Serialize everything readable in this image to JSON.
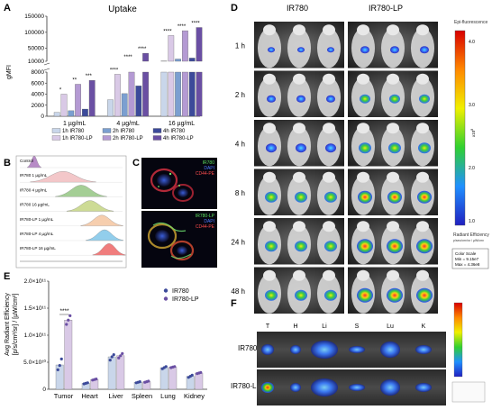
{
  "panels": {
    "a": {
      "letter": "A"
    },
    "b": {
      "letter": "B"
    },
    "c": {
      "letter": "C"
    },
    "d": {
      "letter": "D"
    },
    "e": {
      "letter": "E"
    },
    "f": {
      "letter": "F"
    }
  },
  "panel_a": {
    "title": "Uptake",
    "ylabel": "gMFI",
    "yticks_top": [
      "150000",
      "100000",
      "50000",
      "10000"
    ],
    "yticks_bottom": [
      "8000",
      "6000",
      "4000",
      "2000",
      "0"
    ],
    "groups": [
      "1 µg/mL",
      "4 µg/mL",
      "16 µg/mL"
    ],
    "group_sig": [
      [
        "*",
        "**",
        "***"
      ],
      [
        "****",
        "****",
        "****"
      ],
      [
        "****",
        "****",
        "****"
      ]
    ],
    "legend": [
      {
        "label": "1h IR780",
        "color": "#c9d6ea"
      },
      {
        "label": "2h IR780",
        "color": "#7b9fd0"
      },
      {
        "label": "4h IR780",
        "color": "#3c4a9a"
      },
      {
        "label": "1h IR780-LP",
        "color": "#d9c9e6"
      },
      {
        "label": "2h IR780-LP",
        "color": "#b49ad3"
      },
      {
        "label": "4h IR780-LP",
        "color": "#6a4fa3"
      }
    ]
  },
  "panel_b": {
    "rows": [
      {
        "label": "Control",
        "color": "#b07fc0"
      },
      {
        "label": "IR780 1 µg/mL",
        "color": "#f2c2c4"
      },
      {
        "label": "IR780 4 µg/mL",
        "color": "#9bc98a"
      },
      {
        "label": "IR780 16 µg/mL",
        "color": "#c8d88a"
      },
      {
        "label": "IR780-LP 1 µg/mL",
        "color": "#f6c9a6"
      },
      {
        "label": "IR780-LP 4 µg/mL",
        "color": "#87c9ea"
      },
      {
        "label": "IR780-LP 16 µg/mL",
        "color": "#ef6f6f"
      }
    ]
  },
  "panel_c": {
    "top": {
      "l1": "IR780",
      "l2": "DAPI",
      "l3": "CD44-PE"
    },
    "bottom": {
      "l1": "IR780-LP",
      "l2": "DAPI",
      "l3": "CD44-PE"
    },
    "colors": {
      "green": "#5ee05e",
      "blue": "#4f7bff",
      "red": "#ff4d4d"
    }
  },
  "panel_d": {
    "col_ir780": "IR780",
    "col_lp": "IR780-LP",
    "times": [
      "1 h",
      "2 h",
      "4 h",
      "8 h",
      "24 h",
      "48 h"
    ],
    "scale_title": "Epi-fluorescence",
    "scale_ticks": [
      "4.0",
      "3.0",
      "2.0",
      "1.0"
    ],
    "scale_exp": "x10",
    "scale_exp_power": "8",
    "radiant_label": "Radiant Efficiency",
    "radiant_units": "p/sec/cm²/sr / µW/cm²",
    "color_scale_title": "Color Scale",
    "color_scale_min": "Min = 9.15e7",
    "color_scale_max": "Max = 4.36e8"
  },
  "panel_e": {
    "ylabel_1": "Avg Radiant Efficiency",
    "ylabel_2": "[p/s/cm²/sr] / [µW/cm²]",
    "yticks": [
      "2.0×10¹¹",
      "1.5×10¹¹",
      "1.0×10¹¹",
      "5.0×10¹⁰",
      "0"
    ],
    "sig": "****",
    "legend": [
      {
        "label": "IR780",
        "color": "#3c4a9a"
      },
      {
        "label": "IR780-LP",
        "color": "#6a4fa3"
      }
    ]
  },
  "panel_f": {
    "organ_codes": [
      "T",
      "H",
      "Li",
      "S",
      "Lu",
      "K"
    ],
    "rows": [
      "IR780",
      "IR780-LP"
    ]
  },
  "chart_data": [
    {
      "type": "bar",
      "title": "Uptake",
      "xlabel": "",
      "ylabel": "gMFI",
      "categories": [
        "1 µg/mL",
        "4 µg/mL",
        "16 µg/mL"
      ],
      "series": [
        {
          "name": "1h IR780",
          "values": [
            700,
            3000,
            11000
          ]
        },
        {
          "name": "1h IR780-LP",
          "values": [
            4000,
            7600,
            90000
          ]
        },
        {
          "name": "2h IR780",
          "values": [
            1000,
            4100,
            17000
          ]
        },
        {
          "name": "2h IR780-LP",
          "values": [
            5800,
            9500,
            105000
          ]
        },
        {
          "name": "4h IR780",
          "values": [
            1300,
            5500,
            20000
          ]
        },
        {
          "name": "4h IR780-LP",
          "values": [
            6500,
            35000,
            115000
          ]
        }
      ],
      "y_axis_break": [
        8000,
        10000
      ]
    },
    {
      "type": "bar",
      "title": "",
      "xlabel": "",
      "ylabel": "Avg Radiant Efficiency [p/s/cm²/sr] / [µW/cm²]",
      "categories": [
        "Tumor",
        "Heart",
        "Liver",
        "Spleen",
        "Lung",
        "Kidney"
      ],
      "series": [
        {
          "name": "IR780",
          "values": [
            45000000000.0,
            11000000000.0,
            60000000000.0,
            13000000000.0,
            40000000000.0,
            24000000000.0
          ],
          "points": [
            [
              36000000000.0,
              44000000000.0,
              56000000000.0
            ],
            [
              10000000000.0,
              11000000000.0,
              12000000000.0
            ],
            [
              54000000000.0,
              60000000000.0,
              64000000000.0
            ],
            [
              12000000000.0,
              13000000000.0,
              14000000000.0
            ],
            [
              38000000000.0,
              40000000000.0,
              42000000000.0
            ],
            [
              22000000000.0,
              24000000000.0,
              26000000000.0
            ]
          ]
        },
        {
          "name": "IR780-LP",
          "values": [
            128000000000.0,
            18000000000.0,
            62000000000.0,
            14000000000.0,
            41000000000.0,
            30000000000.0
          ],
          "points": [
            [
              120000000000.0,
              128000000000.0,
              136000000000.0
            ],
            [
              17000000000.0,
              18000000000.0,
              19000000000.0
            ],
            [
              58000000000.0,
              62000000000.0,
              66000000000.0
            ],
            [
              13000000000.0,
              14000000000.0,
              15000000000.0
            ],
            [
              40000000000.0,
              41000000000.0,
              42000000000.0
            ],
            [
              29000000000.0,
              30000000000.0,
              31000000000.0
            ]
          ]
        }
      ],
      "ylim": [
        0,
        200000000000.0
      ]
    }
  ]
}
